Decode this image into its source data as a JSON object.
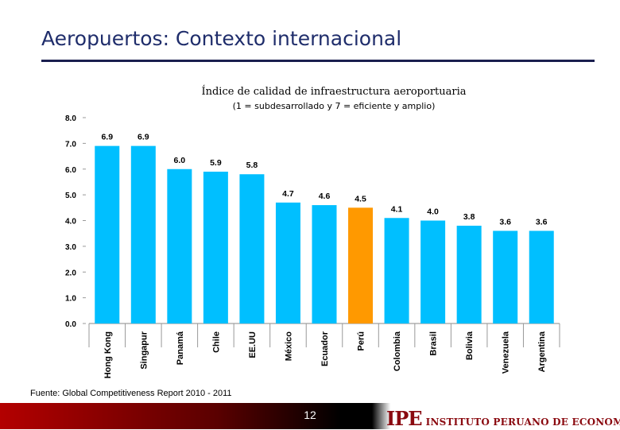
{
  "slide": {
    "title": "Aeropuertos: Contexto internacional",
    "page_number": "12",
    "source": "Fuente: Global Competitiveness Report 2010 - 2011"
  },
  "logo": {
    "mark": "IPE",
    "text": "INSTITUTO PERUANO DE ECONOMÍA"
  },
  "colors": {
    "bar": "#00bfff",
    "highlight": "#ff9900",
    "title": "#1f2d6b",
    "rule": "#1a1f4f",
    "logo": "#8a0a10"
  },
  "chart_data": {
    "type": "bar",
    "title": "Índice de calidad de infraestructura aeroportuaria",
    "subtitle": "(1 = subdesarrollado y 7 = eficiente y amplio)",
    "categories": [
      "Hong Kong",
      "Singapur",
      "Panamá",
      "Chile",
      "EE.UU",
      "México",
      "Ecuador",
      "Perú",
      "Colombia",
      "Brasil",
      "Bolivia",
      "Venezuela",
      "Argentina"
    ],
    "values": [
      6.9,
      6.9,
      6.0,
      5.9,
      5.8,
      4.7,
      4.6,
      4.5,
      4.1,
      4.0,
      3.8,
      3.6,
      3.6
    ],
    "value_labels": [
      "6.9",
      "6.9",
      "6.0",
      "5.9",
      "5.8",
      "4.7",
      "4.6",
      "4.5",
      "4.1",
      "4.0",
      "3.8",
      "3.6",
      "3.6"
    ],
    "highlight_category": "Perú",
    "ylim": [
      0,
      8
    ],
    "yticks": [
      "0.0",
      "1.0",
      "2.0",
      "3.0",
      "4.0",
      "5.0",
      "6.0",
      "7.0",
      "8.0"
    ],
    "grid": false,
    "legend": "none"
  }
}
